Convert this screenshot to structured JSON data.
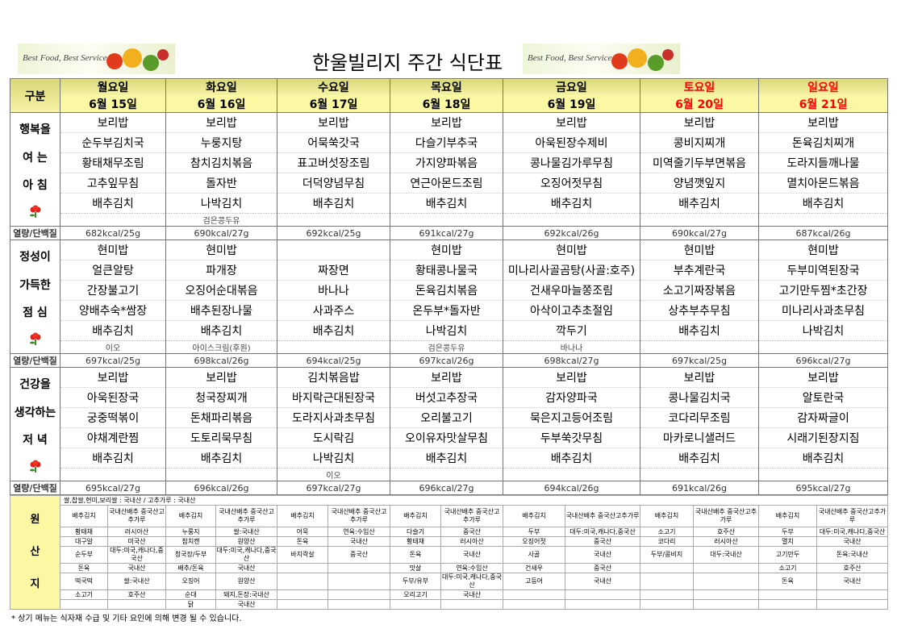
{
  "header": {
    "title": "한울빌리지 주간 식단표",
    "banners": [
      "Best Food, Best Service",
      "Best Food, Best Service"
    ]
  },
  "table": {
    "corner": "구분",
    "days": [
      {
        "name": "월요일",
        "date": "6월 15일",
        "color": "#000000"
      },
      {
        "name": "화요일",
        "date": "6월 16일",
        "color": "#000000"
      },
      {
        "name": "수요일",
        "date": "6월 17일",
        "color": "#000000"
      },
      {
        "name": "목요일",
        "date": "6월 18일",
        "color": "#000000"
      },
      {
        "name": "금요일",
        "date": "6월 19일",
        "color": "#000000"
      },
      {
        "name": "토요일",
        "date": "6월 20일",
        "color": "#ff0000"
      },
      {
        "name": "일요일",
        "date": "6월 21일",
        "color": "#ff0000"
      }
    ],
    "kcal_label": "열량/단백질",
    "meals": [
      {
        "label": [
          "행복을",
          "여 는",
          "아 침"
        ],
        "items": [
          [
            "보리밥",
            "보리밥",
            "보리밥",
            "보리밥",
            "보리밥",
            "보리밥",
            "보리밥"
          ],
          [
            "순두부김치국",
            "누룽지탕",
            "어묵쑥갓국",
            "다슬기부추국",
            "아욱된장수제비",
            "콩비지찌개",
            "돈육김치찌개"
          ],
          [
            "황태채무조림",
            "참치김치볶음",
            "표고버섯장조림",
            "가지양파볶음",
            "콩나물김가루무침",
            "미역줄기두부면볶음",
            "도라지들깨나물"
          ],
          [
            "고추잎무침",
            "돌자반",
            "더덕양념무침",
            "연근아몬드조림",
            "오징어젓무침",
            "양념깻잎지",
            "멸치아몬드볶음"
          ],
          [
            "배추김치",
            "나박김치",
            "배추김치",
            "배추김치",
            "배추김치",
            "배추김치",
            "배추김치"
          ]
        ],
        "extra": [
          null,
          "검은콩두유",
          null,
          null,
          null,
          null,
          null
        ],
        "kcal": [
          "682kcal/25g",
          "690kcal/27g",
          "692kcal/25g",
          "691kcal/27g",
          "692kcal/26g",
          "690kcal/27g",
          "687kcal/26g"
        ]
      },
      {
        "label": [
          "정성이",
          "가득한",
          "점 심"
        ],
        "items": [
          [
            "현미밥",
            "현미밥",
            null,
            "현미밥",
            "현미밥",
            "현미밥",
            "현미밥"
          ],
          [
            "얼큰알탕",
            "파개장",
            "짜장면",
            "황태콩나물국",
            "미나리사골곰탕(사골:호주)",
            "부추계란국",
            "두부미역된장국"
          ],
          [
            "간장불고기",
            "오징어순대볶음",
            "바나나",
            "돈육김치볶음",
            "건새우마늘쫑조림",
            "소고기짜장볶음",
            "고기만두찜*초간장"
          ],
          [
            "양배추숙*쌈장",
            "배추된장나물",
            "사과주스",
            "온두부*돌자반",
            "아삭이고추초절임",
            "상추부추무침",
            "미나리사과초무침"
          ],
          [
            "배추김치",
            "배추김치",
            "배추김치",
            "나박김치",
            "깍두기",
            "배추김치",
            "나박김치"
          ]
        ],
        "extra": [
          "이오",
          "아이스크림(후원)",
          null,
          "검은콩두유",
          "바나나",
          null,
          null
        ],
        "kcal": [
          "697kcal/25g",
          "698kcal/26g",
          "694kcal/25g",
          "697kcal/26g",
          "698kcal/27g",
          "697kcal/25g",
          "696kcal/27g"
        ]
      },
      {
        "label": [
          "건강을",
          "생각하는",
          "저 녁"
        ],
        "items": [
          [
            "보리밥",
            "보리밥",
            "김치볶음밥",
            "보리밥",
            "보리밥",
            "보리밥",
            "보리밥"
          ],
          [
            "아욱된장국",
            "청국장찌개",
            "바지락근대된장국",
            "버섯고추장국",
            "감자양파국",
            "콩나물김치국",
            "알토란국"
          ],
          [
            "궁중떡볶이",
            "돈채파리볶음",
            "도라지사과초무침",
            "오리불고기",
            "묵은지고등어조림",
            "코다리무조림",
            "감자짜글이"
          ],
          [
            "야채계란찜",
            "도토리묵무침",
            "도시락김",
            "오이유자맛살무침",
            "두부쑥갓무침",
            "마카로니샐러드",
            "시래기된장지짐"
          ],
          [
            "배추김치",
            "배추김치",
            "나박김치",
            "배추김치",
            "배추김치",
            "배추김치",
            "배추김치"
          ]
        ],
        "extra": [
          null,
          null,
          "이오",
          null,
          null,
          null,
          null
        ],
        "kcal": [
          "695kcal/27g",
          "696kcal/26g",
          "697kcal/27g",
          "696kcal/27g",
          "694kcal/26g",
          "691kcal/26g",
          "695kcal/27g"
        ]
      }
    ]
  },
  "origin": {
    "label": [
      "원",
      "산",
      "지"
    ],
    "note": "쌀,찹쌀,현미,보리쌀 : 국내산 / 고추가루 : 국내산",
    "rows": [
      [
        "배추김치",
        "국내산배추 중국산고추가루",
        "배추김치",
        "국내산배추 중국산고추가루",
        "배추김치",
        "국내산배추 중국산고추가루",
        "배추김치",
        "국내산배추 중국산고추가루",
        "배추김치",
        "국내산배추 중국산고추가루",
        "배추김치",
        "국내산배추 중국산고추가루",
        "배추김치",
        "국내산배추 중국산고추가루"
      ],
      [
        "황태채",
        "러시아산",
        "누룽지",
        "쌀:국내산",
        "어묵",
        "연육:수입산",
        "다슬기",
        "중국산",
        "두부",
        "대두:미국,캐나다,중국산",
        "소고기",
        "호주산",
        "두부",
        "대두:미국,캐나다,중국산"
      ],
      [
        "대구알",
        "미국산",
        "참치캔",
        "원양산",
        "돈육",
        "국내산",
        "황태채",
        "러시아산",
        "오징어젓",
        "중국산",
        "코다리",
        "러시아산",
        "멸치",
        "국내산"
      ],
      [
        "순두부",
        "대두:미국,캐나다,중국산",
        "청국장/두부",
        "대두:미국,캐나다,중국산",
        "바지락살",
        "중국산",
        "돈육",
        "국내산",
        "사골",
        "국내산",
        "두부/콩비지",
        "대두:국내산",
        "고기만두",
        "돈육:국내산"
      ],
      [
        "돈육",
        "국내산",
        "배추/돈육",
        "국내산",
        null,
        null,
        "맛살",
        "연육:수입산",
        "건새우",
        "중국산",
        null,
        null,
        "소고기",
        "호주산"
      ],
      [
        "떡국떡",
        "쌀:국내산",
        "오징어",
        "원양산",
        null,
        null,
        "두부/유부",
        "대두:미국,캐나다,중국산",
        "고등어",
        "국내산",
        null,
        null,
        "돈육",
        "국내산"
      ],
      [
        "소고기",
        "호주산",
        "순대",
        "돼지,돈장:국내산",
        null,
        null,
        "오리고기",
        "국내산",
        null,
        null,
        null,
        null,
        null,
        null
      ],
      [
        null,
        null,
        "닭",
        "국내산",
        null,
        null,
        null,
        null,
        null,
        null,
        null,
        null,
        null,
        null
      ]
    ]
  },
  "footer": "* 상기 메뉴는 식자재 수급 및 기타 요인에 의해 변경 될 수 있습니다."
}
